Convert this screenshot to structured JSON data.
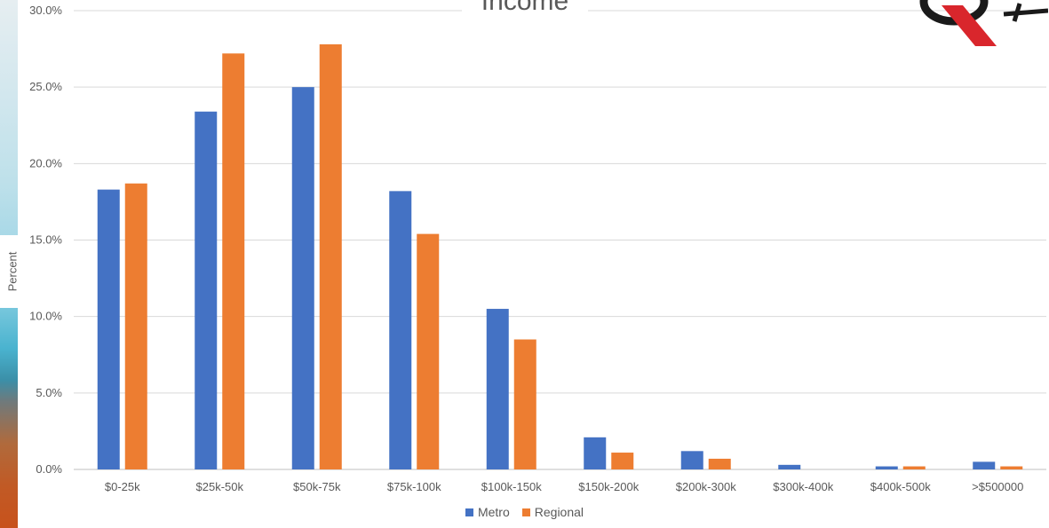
{
  "chart_data": {
    "type": "bar",
    "title": "Income",
    "ylabel": "Percent",
    "xlabel": "",
    "ylim": [
      0,
      30
    ],
    "y_ticks": [
      "0.0%",
      "5.0%",
      "10.0%",
      "15.0%",
      "20.0%",
      "25.0%",
      "30.0%"
    ],
    "grid": true,
    "legend_position": "bottom",
    "categories": [
      "$0-25k",
      "$25k-50k",
      "$50k-75k",
      "$75k-100k",
      "$100k-150k",
      "$150k-200k",
      "$200k-300k",
      "$300k-400k",
      "$400k-500k",
      ">$500000"
    ],
    "series": [
      {
        "name": "Metro",
        "color": "#4472c4",
        "values": [
          18.3,
          23.4,
          25.0,
          18.2,
          10.5,
          2.1,
          1.2,
          0.3,
          0.2,
          0.5
        ]
      },
      {
        "name": "Regional",
        "color": "#ed7d31",
        "values": [
          18.7,
          27.2,
          27.8,
          15.4,
          8.5,
          1.1,
          0.7,
          0.0,
          0.2,
          0.2
        ]
      }
    ]
  },
  "logo": {
    "icon": "brand-logo-icon",
    "colors": [
      "#1a1a1a",
      "#d9262c"
    ]
  }
}
